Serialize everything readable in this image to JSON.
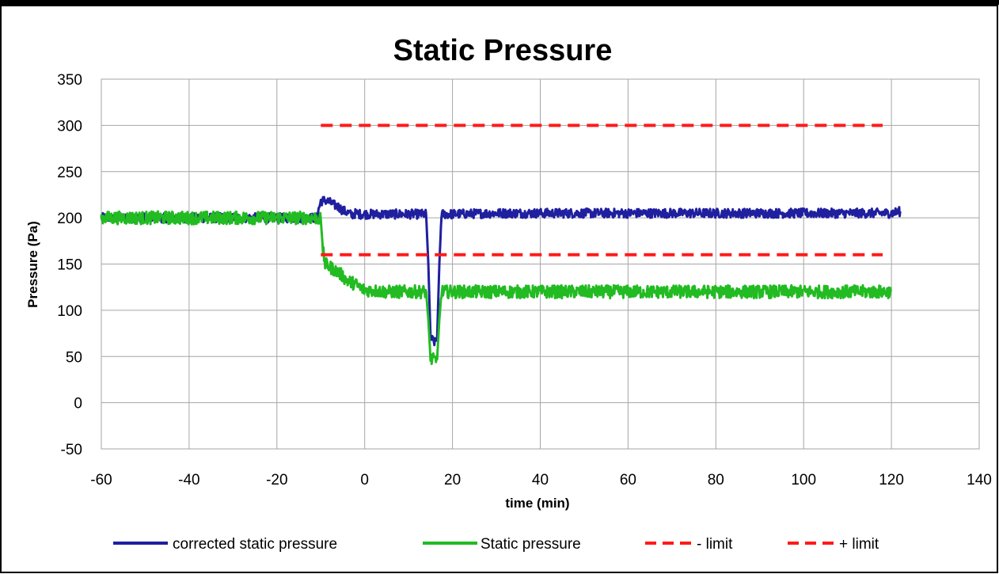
{
  "chart_data": {
    "type": "line",
    "title": "Static Pressure",
    "xlabel": "time (min)",
    "ylabel": "Pressure (Pa)",
    "xlim": [
      -60,
      140
    ],
    "ylim": [
      -50,
      350
    ],
    "x_ticks": [
      -60,
      -40,
      -20,
      0,
      20,
      40,
      60,
      80,
      100,
      120,
      140
    ],
    "y_ticks": [
      -50,
      0,
      50,
      100,
      150,
      200,
      250,
      300,
      350
    ],
    "x_tick_labels": [
      "-60",
      "-40",
      "-20",
      "0",
      "20",
      "40",
      "60",
      "80",
      "100",
      "120",
      "140"
    ],
    "y_tick_labels": [
      "-50",
      "0",
      "50",
      "100",
      "150",
      "200",
      "250",
      "300",
      "350"
    ],
    "grid": true,
    "legend_position": "bottom",
    "series": [
      {
        "name": "corrected static pressure",
        "color": "#1f1fa0",
        "style": "solid",
        "x": [
          -60,
          -50,
          -40,
          -30,
          -20,
          -11,
          -10,
          -9,
          -8,
          -7,
          -6,
          -5,
          -4,
          -3,
          -2,
          -1,
          0,
          5,
          10,
          14,
          14.5,
          15,
          16,
          16.5,
          17,
          17.5,
          20,
          30,
          40,
          50,
          60,
          70,
          80,
          90,
          100,
          110,
          120,
          122
        ],
        "y": [
          200,
          200,
          200,
          200,
          200,
          200,
          218,
          219,
          217,
          214,
          212,
          208,
          206,
          203,
          205,
          204,
          204,
          204,
          204,
          204,
          150,
          70,
          65,
          70,
          150,
          204,
          204,
          205,
          205,
          205,
          205,
          205,
          205,
          205,
          205,
          205,
          205,
          207
        ],
        "noise": 5
      },
      {
        "name": "Static pressure",
        "color": "#22bb22",
        "style": "solid",
        "x": [
          -60,
          -50,
          -40,
          -30,
          -20,
          -11,
          -10,
          -9.5,
          -9,
          -8,
          -7,
          -6,
          -5,
          -4,
          -3,
          -2,
          -1,
          0,
          5,
          10,
          14,
          14.5,
          15,
          16,
          16.5,
          17,
          17.5,
          20,
          30,
          40,
          50,
          60,
          70,
          80,
          90,
          100,
          110,
          120
        ],
        "y": [
          200,
          200,
          200,
          200,
          200,
          200,
          198,
          165,
          150,
          147,
          144,
          141,
          137,
          132,
          130,
          128,
          124,
          122,
          120,
          120,
          120,
          90,
          47,
          46,
          47,
          90,
          120,
          120,
          120,
          120,
          120,
          120,
          120,
          120,
          120,
          120,
          120,
          120
        ],
        "noise": 7
      },
      {
        "name": "- limit",
        "color": "#ff1a1a",
        "style": "dashed",
        "x": [
          -10,
          118
        ],
        "y": [
          160,
          160
        ],
        "noise": 0
      },
      {
        "name": "+ limit",
        "color": "#ff1a1a",
        "style": "dashed",
        "x": [
          -10,
          118
        ],
        "y": [
          300,
          300
        ],
        "noise": 0
      }
    ]
  }
}
